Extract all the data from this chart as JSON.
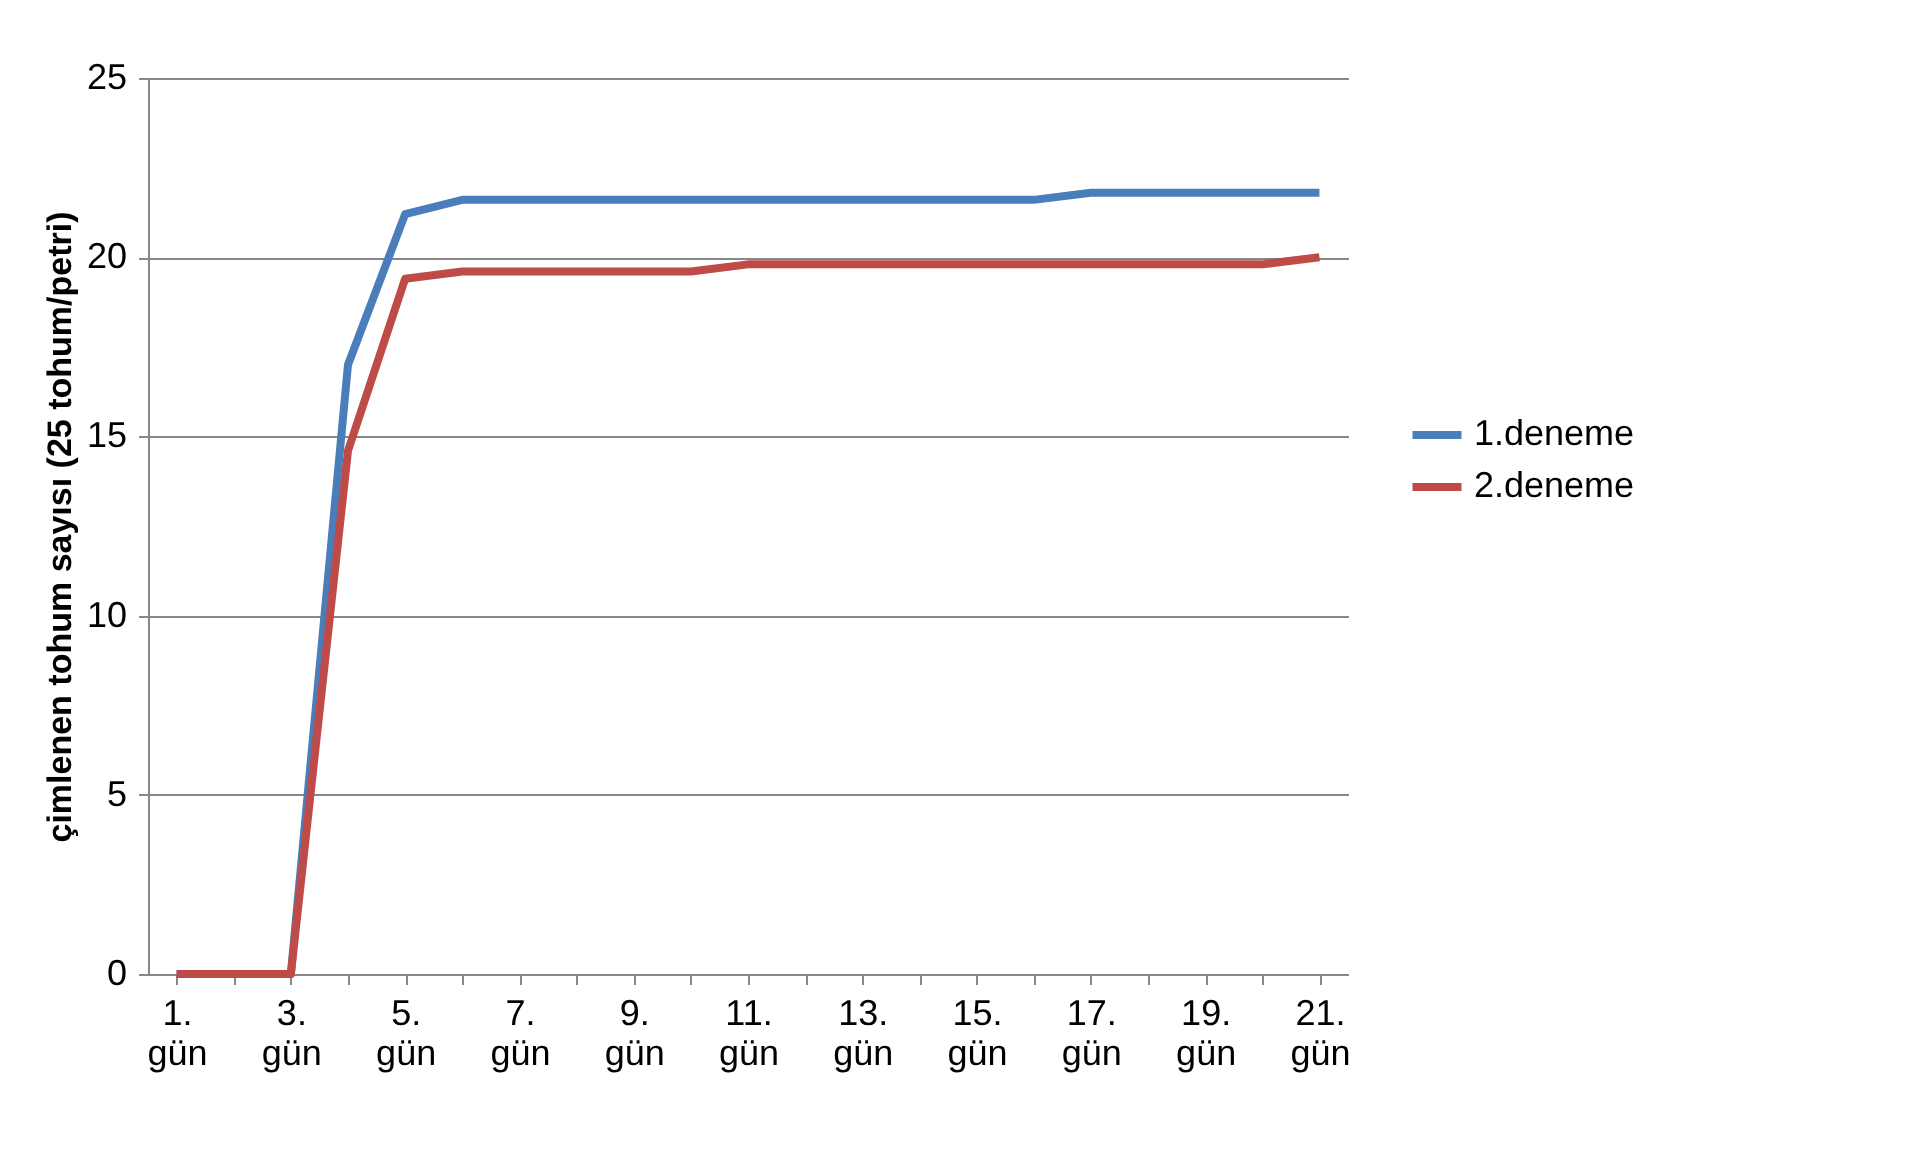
{
  "chart_data": {
    "type": "line",
    "ylabel": "çimlenen tohum sayısı (25 tohum/petri)",
    "categories": [
      "1. gün",
      null,
      "3. gün",
      null,
      "5. gün",
      null,
      "7. gün",
      null,
      "9. gün",
      null,
      "11. gün",
      null,
      "13. gün",
      null,
      "15. gün",
      null,
      "17. gün",
      null,
      "19. gün",
      null,
      "21. gün"
    ],
    "series": [
      {
        "name": "1.deneme",
        "color": "#4a7ebb",
        "values": [
          0,
          0,
          0,
          17,
          21.2,
          21.6,
          21.6,
          21.6,
          21.6,
          21.6,
          21.6,
          21.6,
          21.6,
          21.6,
          21.6,
          21.6,
          21.8,
          21.8,
          21.8,
          21.8,
          21.8
        ]
      },
      {
        "name": "2.deneme",
        "color": "#be4b48",
        "values": [
          0,
          0,
          0,
          14.6,
          19.4,
          19.6,
          19.6,
          19.6,
          19.6,
          19.6,
          19.8,
          19.8,
          19.8,
          19.8,
          19.8,
          19.8,
          19.8,
          19.8,
          19.8,
          19.8,
          20
        ]
      }
    ],
    "ylim": [
      0,
      25
    ],
    "yticks": [
      0,
      5,
      10,
      15,
      20,
      25
    ],
    "grid": "y",
    "legend": "right",
    "marker": "none",
    "line_style": "solid"
  }
}
